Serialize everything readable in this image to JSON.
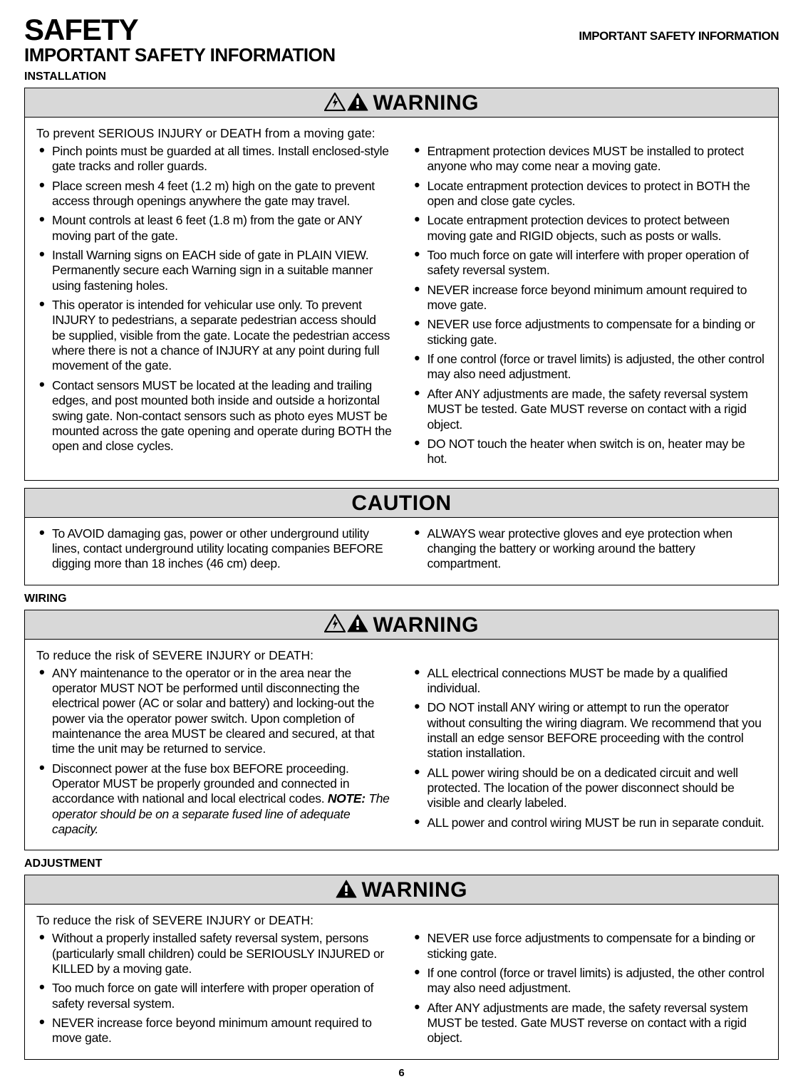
{
  "header": {
    "title": "SAFETY",
    "right": "IMPORTANT SAFETY INFORMATION",
    "subtitle": "IMPORTANT SAFETY INFORMATION"
  },
  "page_number": "6",
  "colors": {
    "header_bg": "#d8d8d8",
    "border": "#000000",
    "text": "#000000",
    "page_bg": "#ffffff"
  },
  "sections": [
    {
      "label": "INSTALLATION",
      "boxes": [
        {
          "word": "WARNING",
          "icons": [
            "shock",
            "alert"
          ],
          "preamble": "To prevent SERIOUS INJURY or DEATH from a moving gate:",
          "left": [
            "Pinch points must be guarded at all times. Install enclosed-style gate tracks and roller guards.",
            "Place screen mesh 4 feet (1.2 m) high on the gate to prevent access through openings anywhere the gate may travel.",
            "Mount controls at least 6 feet (1.8 m) from the gate or ANY moving part of the gate.",
            "Install Warning signs on EACH side of gate in PLAIN VIEW. Permanently secure each Warning sign in a suitable manner using fastening holes.",
            "This operator is intended for vehicular use only. To prevent INJURY to pedestrians, a separate pedestrian access should be supplied, visible from the gate. Locate the pedestrian access where there is not a chance of INJURY at any point during full movement of the gate.",
            "Contact sensors MUST be located at the leading and trailing edges, and post mounted both inside and outside a horizontal swing gate. Non-contact sensors such as photo eyes MUST be mounted across the gate opening and operate during BOTH the open and close cycles."
          ],
          "right": [
            "Entrapment protection devices MUST be installed to protect anyone who may come near a moving gate.",
            "Locate entrapment protection devices to protect in BOTH the open and close gate cycles.",
            "Locate entrapment protection devices to protect between moving gate and RIGID objects, such as posts or walls.",
            "Too much force on gate will interfere with proper operation of safety reversal system.",
            "NEVER increase force beyond minimum amount required to move gate.",
            "NEVER use force adjustments to compensate for a binding or sticking gate.",
            "If one control (force or travel limits) is adjusted, the other control may also need adjustment.",
            "After ANY adjustments are made, the safety reversal system MUST be tested. Gate MUST reverse on contact with a rigid object.",
            "DO NOT touch the heater when switch is on, heater may be hot."
          ]
        },
        {
          "word": "CAUTION",
          "icons": [],
          "preamble": "",
          "left": [
            "To AVOID damaging gas, power or other underground utility lines, contact underground utility locating companies BEFORE digging more than 18 inches (46 cm) deep."
          ],
          "right": [
            "ALWAYS wear protective gloves and eye protection when changing the battery or working around the battery compartment."
          ]
        }
      ]
    },
    {
      "label": "WIRING",
      "boxes": [
        {
          "word": "WARNING",
          "icons": [
            "shock",
            "alert"
          ],
          "preamble": "To reduce the risk of SEVERE INJURY or DEATH:",
          "left": [
            "ANY maintenance to the operator or in the area near the operator MUST NOT be performed until disconnecting the electrical power (AC or solar and battery) and locking-out the power via the operator power switch. Upon completion of maintenance the area MUST be cleared and secured, at that time the unit may be returned to service.",
            "Disconnect power at the fuse box BEFORE proceeding. Operator MUST be properly grounded and connected in accordance with national and local electrical codes. {{NOTE}} The operator should be on a separate fused line of adequate capacity."
          ],
          "right": [
            "ALL electrical connections MUST be made by a qualified individual.",
            "DO NOT install ANY wiring or attempt to run the operator without consulting the wiring diagram. We recommend that you install an edge sensor BEFORE proceeding with the control station installation.",
            "ALL power wiring should be on a dedicated circuit and well protected. The location of the power disconnect should be visible and clearly labeled.",
            "ALL power and control wiring MUST be run in separate conduit."
          ]
        }
      ]
    },
    {
      "label": "ADJUSTMENT",
      "boxes": [
        {
          "word": "WARNING",
          "icons": [
            "alert"
          ],
          "preamble": "To reduce the risk of SEVERE INJURY or DEATH:",
          "left": [
            "Without a properly installed safety reversal system, persons (particularly small children) could be SERIOUSLY INJURED or KILLED by a moving gate.",
            "Too much force on gate will interfere with proper operation of safety reversal system.",
            "NEVER increase force beyond minimum amount required to move gate."
          ],
          "right": [
            "NEVER use force adjustments to compensate for a binding or sticking gate.",
            "If one control (force or travel limits) is adjusted, the other control may also need adjustment.",
            "After ANY adjustments are made, the safety reversal system MUST be tested. Gate MUST reverse on contact with a rigid object."
          ]
        }
      ]
    }
  ]
}
